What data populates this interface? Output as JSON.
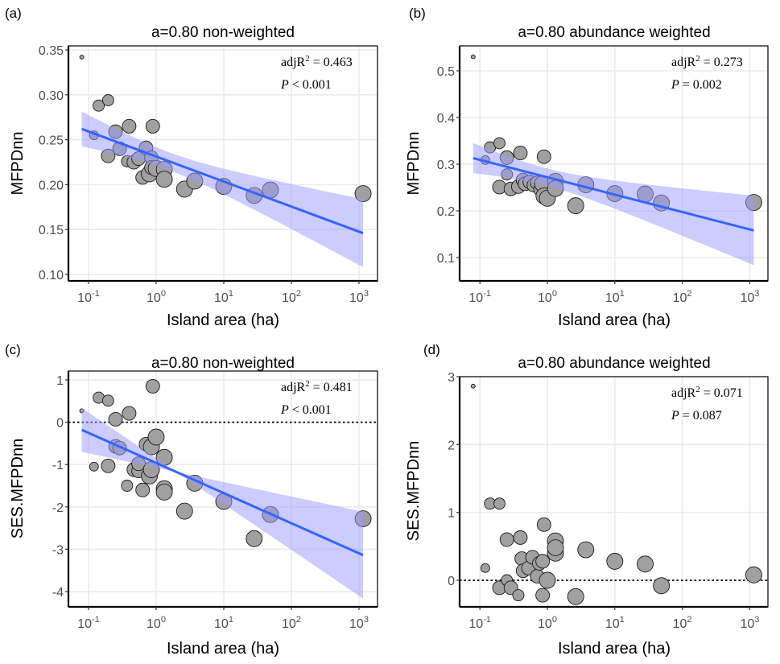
{
  "chart_data": [
    {
      "type": "scatter",
      "panel_label": "(a)",
      "title": "a=0.80 non-weighted",
      "xlabel": "Island area (ha)",
      "ylabel": "MFPDnn",
      "x_scale": "log10",
      "x_ticks": [
        {
          "exp": -1,
          "label": "10",
          "sup": "-1"
        },
        {
          "exp": 0,
          "label": "10",
          "sup": "0"
        },
        {
          "exp": 1,
          "label": "10",
          "sup": "1"
        },
        {
          "exp": 2,
          "label": "10",
          "sup": "2"
        },
        {
          "exp": 3,
          "label": "10",
          "sup": "3"
        }
      ],
      "xlim_log10": [
        -1.3,
        3.25
      ],
      "ylim": [
        0.093,
        0.355
      ],
      "y_ticks": [
        0.1,
        0.15,
        0.2,
        0.25,
        0.3,
        0.35
      ],
      "y_tick_labels": [
        "0.10",
        "0.15",
        "0.20",
        "0.25",
        "0.30",
        "0.35"
      ],
      "zero_line": false,
      "grid": true,
      "stats": {
        "r2_label": "adjR",
        "r2_sup": "2",
        "r2_value": " = 0.463",
        "p_label": "P",
        "p_value": " < 0.001"
      },
      "fit": {
        "x_log10": [
          -1.1,
          3.06
        ],
        "y": [
          0.262,
          0.146
        ],
        "ci_lower": [
          0.247,
          0.11
        ],
        "ci_upper": [
          0.278,
          0.182
        ],
        "ci_mid_log10": 0.2
      },
      "points": [
        {
          "log10_area": -1.1,
          "y": 0.342,
          "size": 1
        },
        {
          "log10_area": -0.85,
          "y": 0.288,
          "size": 3
        },
        {
          "log10_area": -0.71,
          "y": 0.294,
          "size": 3
        },
        {
          "log10_area": -0.92,
          "y": 0.255,
          "size": 2
        },
        {
          "log10_area": -0.6,
          "y": 0.259,
          "size": 4
        },
        {
          "log10_area": -0.4,
          "y": 0.265,
          "size": 4
        },
        {
          "log10_area": -0.05,
          "y": 0.265,
          "size": 4
        },
        {
          "log10_area": -0.71,
          "y": 0.232,
          "size": 4
        },
        {
          "log10_area": -0.54,
          "y": 0.24,
          "size": 4
        },
        {
          "log10_area": -0.43,
          "y": 0.226,
          "size": 3
        },
        {
          "log10_area": -0.33,
          "y": 0.225,
          "size": 4
        },
        {
          "log10_area": -0.26,
          "y": 0.229,
          "size": 4
        },
        {
          "log10_area": -0.15,
          "y": 0.241,
          "size": 4
        },
        {
          "log10_area": -0.07,
          "y": 0.23,
          "size": 4
        },
        {
          "log10_area": -0.2,
          "y": 0.208,
          "size": 4
        },
        {
          "log10_area": -0.1,
          "y": 0.212,
          "size": 5
        },
        {
          "log10_area": -0.07,
          "y": 0.219,
          "size": 4
        },
        {
          "log10_area": 0.0,
          "y": 0.218,
          "size": 5
        },
        {
          "log10_area": 0.12,
          "y": 0.217,
          "size": 5
        },
        {
          "log10_area": 0.12,
          "y": 0.206,
          "size": 5
        },
        {
          "log10_area": 0.42,
          "y": 0.195,
          "size": 5
        },
        {
          "log10_area": 0.57,
          "y": 0.204,
          "size": 5
        },
        {
          "log10_area": 1.0,
          "y": 0.198,
          "size": 5
        },
        {
          "log10_area": 1.45,
          "y": 0.188,
          "size": 5
        },
        {
          "log10_area": 1.69,
          "y": 0.194,
          "size": 5
        },
        {
          "log10_area": 3.06,
          "y": 0.19,
          "size": 5
        }
      ]
    },
    {
      "type": "scatter",
      "panel_label": "(b)",
      "title": "a=0.80 abundance weighted",
      "xlabel": "Island area (ha)",
      "ylabel": "MFPDnn",
      "x_scale": "log10",
      "x_ticks": [
        {
          "exp": -1,
          "label": "10",
          "sup": "-1"
        },
        {
          "exp": 0,
          "label": "10",
          "sup": "0"
        },
        {
          "exp": 1,
          "label": "10",
          "sup": "1"
        },
        {
          "exp": 2,
          "label": "10",
          "sup": "2"
        },
        {
          "exp": 3,
          "label": "10",
          "sup": "3"
        }
      ],
      "xlim_log10": [
        -1.3,
        3.25
      ],
      "ylim": [
        0.06,
        0.55
      ],
      "y_ticks": [
        0.1,
        0.2,
        0.3,
        0.4,
        0.5
      ],
      "y_tick_labels": [
        "0.1",
        "0.2",
        "0.3",
        "0.4",
        "0.5"
      ],
      "zero_line": false,
      "grid": true,
      "stats": {
        "r2_label": "adjR",
        "r2_sup": "2",
        "r2_value": " = 0.273",
        "p_label": "P",
        "p_value": " = 0.002"
      },
      "fit": {
        "x_log10": [
          -1.1,
          3.06
        ],
        "y": [
          0.313,
          0.158
        ],
        "ci_lower": [
          0.281,
          0.083
        ],
        "ci_upper": [
          0.345,
          0.232
        ],
        "ci_mid_log10": 0.0
      },
      "points": [
        {
          "log10_area": -1.1,
          "y": 0.53,
          "size": 1
        },
        {
          "log10_area": -0.92,
          "y": 0.309,
          "size": 2
        },
        {
          "log10_area": -0.85,
          "y": 0.336,
          "size": 3
        },
        {
          "log10_area": -0.71,
          "y": 0.345,
          "size": 3
        },
        {
          "log10_area": -0.6,
          "y": 0.314,
          "size": 4
        },
        {
          "log10_area": -0.6,
          "y": 0.278,
          "size": 3
        },
        {
          "log10_area": -0.4,
          "y": 0.324,
          "size": 4
        },
        {
          "log10_area": -0.05,
          "y": 0.316,
          "size": 4
        },
        {
          "log10_area": -0.71,
          "y": 0.251,
          "size": 4
        },
        {
          "log10_area": -0.54,
          "y": 0.247,
          "size": 4
        },
        {
          "log10_area": -0.43,
          "y": 0.252,
          "size": 4
        },
        {
          "log10_area": -0.36,
          "y": 0.266,
          "size": 4
        },
        {
          "log10_area": -0.33,
          "y": 0.258,
          "size": 4
        },
        {
          "log10_area": -0.26,
          "y": 0.262,
          "size": 4
        },
        {
          "log10_area": -0.2,
          "y": 0.255,
          "size": 4
        },
        {
          "log10_area": -0.15,
          "y": 0.26,
          "size": 4
        },
        {
          "log10_area": -0.1,
          "y": 0.246,
          "size": 4
        },
        {
          "log10_area": -0.07,
          "y": 0.258,
          "size": 5
        },
        {
          "log10_area": -0.05,
          "y": 0.232,
          "size": 5
        },
        {
          "log10_area": 0.0,
          "y": 0.227,
          "size": 5
        },
        {
          "log10_area": 0.12,
          "y": 0.263,
          "size": 5
        },
        {
          "log10_area": 0.12,
          "y": 0.248,
          "size": 5
        },
        {
          "log10_area": 0.42,
          "y": 0.211,
          "size": 5
        },
        {
          "log10_area": 0.57,
          "y": 0.256,
          "size": 5
        },
        {
          "log10_area": 1.0,
          "y": 0.237,
          "size": 5
        },
        {
          "log10_area": 1.45,
          "y": 0.236,
          "size": 5
        },
        {
          "log10_area": 1.69,
          "y": 0.217,
          "size": 5
        },
        {
          "log10_area": 3.06,
          "y": 0.218,
          "size": 5
        }
      ]
    },
    {
      "type": "scatter",
      "panel_label": "(c)",
      "title": "a=0.80 non-weighted",
      "xlabel": "Island area (ha)",
      "ylabel": "SES.MFPDnn",
      "x_scale": "log10",
      "x_ticks": [
        {
          "exp": -1,
          "label": "10",
          "sup": "-1"
        },
        {
          "exp": 0,
          "label": "10",
          "sup": "0"
        },
        {
          "exp": 1,
          "label": "10",
          "sup": "1"
        },
        {
          "exp": 2,
          "label": "10",
          "sup": "2"
        },
        {
          "exp": 3,
          "label": "10",
          "sup": "3"
        }
      ],
      "xlim_log10": [
        -1.3,
        3.25
      ],
      "ylim": [
        -4.2,
        1.1
      ],
      "y_ticks": [
        -4,
        -3,
        -2,
        -1,
        0,
        1
      ],
      "y_tick_labels": [
        "-4",
        "-3",
        "-2",
        "-1",
        "0",
        "1"
      ],
      "zero_line": true,
      "grid": true,
      "stats": {
        "r2_label": "adjR",
        "r2_sup": "2",
        "r2_value": " = 0.481",
        "p_label": "P",
        "p_value": " < 0.001"
      },
      "fit": {
        "x_log10": [
          -1.1,
          3.06
        ],
        "y": [
          -0.18,
          -3.14
        ],
        "ci_lower": [
          -0.6,
          -4.12
        ],
        "ci_upper": [
          0.23,
          -2.17
        ],
        "ci_mid_log10": 0.3
      },
      "points": [
        {
          "log10_area": -1.1,
          "y": 0.27,
          "size": 1
        },
        {
          "log10_area": -0.85,
          "y": 0.58,
          "size": 3
        },
        {
          "log10_area": -0.71,
          "y": 0.51,
          "size": 3
        },
        {
          "log10_area": -0.05,
          "y": 0.85,
          "size": 4
        },
        {
          "log10_area": -0.6,
          "y": 0.07,
          "size": 4
        },
        {
          "log10_area": -0.4,
          "y": 0.21,
          "size": 4
        },
        {
          "log10_area": -0.92,
          "y": -1.05,
          "size": 2
        },
        {
          "log10_area": -0.71,
          "y": -1.03,
          "size": 4
        },
        {
          "log10_area": -0.6,
          "y": -0.57,
          "size": 4
        },
        {
          "log10_area": -0.54,
          "y": -0.61,
          "size": 4
        },
        {
          "log10_area": -0.43,
          "y": -1.5,
          "size": 3
        },
        {
          "log10_area": -0.33,
          "y": -1.12,
          "size": 4
        },
        {
          "log10_area": -0.26,
          "y": -1.15,
          "size": 4
        },
        {
          "log10_area": -0.26,
          "y": -0.98,
          "size": 4
        },
        {
          "log10_area": -0.2,
          "y": -1.6,
          "size": 4
        },
        {
          "log10_area": -0.15,
          "y": -0.52,
          "size": 4
        },
        {
          "log10_area": -0.1,
          "y": -1.27,
          "size": 5
        },
        {
          "log10_area": -0.07,
          "y": -1.12,
          "size": 5
        },
        {
          "log10_area": -0.07,
          "y": -0.58,
          "size": 5
        },
        {
          "log10_area": 0.0,
          "y": -0.35,
          "size": 5
        },
        {
          "log10_area": 0.12,
          "y": -0.83,
          "size": 5
        },
        {
          "log10_area": 0.12,
          "y": -1.57,
          "size": 5
        },
        {
          "log10_area": 0.12,
          "y": -1.65,
          "size": 5
        },
        {
          "log10_area": 0.42,
          "y": -2.1,
          "size": 5
        },
        {
          "log10_area": 0.57,
          "y": -1.44,
          "size": 5
        },
        {
          "log10_area": 1.0,
          "y": -1.87,
          "size": 5
        },
        {
          "log10_area": 1.45,
          "y": -2.75,
          "size": 5
        },
        {
          "log10_area": 1.69,
          "y": -2.18,
          "size": 5
        },
        {
          "log10_area": 3.06,
          "y": -2.28,
          "size": 5
        }
      ]
    },
    {
      "type": "scatter",
      "panel_label": "(d)",
      "title": "a=0.80 abundance weighted",
      "xlabel": "Island area (ha)",
      "ylabel": "SES.MFPDnn",
      "x_scale": "log10",
      "x_ticks": [
        {
          "exp": -1,
          "label": "10",
          "sup": "-1"
        },
        {
          "exp": 0,
          "label": "10",
          "sup": "0"
        },
        {
          "exp": 1,
          "label": "10",
          "sup": "1"
        },
        {
          "exp": 2,
          "label": "10",
          "sup": "2"
        },
        {
          "exp": 3,
          "label": "10",
          "sup": "3"
        }
      ],
      "xlim_log10": [
        -1.3,
        3.25
      ],
      "ylim": [
        -0.38,
        3.0
      ],
      "y_ticks": [
        0,
        1,
        2,
        3
      ],
      "y_tick_labels": [
        "0",
        "1",
        "2",
        "3"
      ],
      "zero_line": true,
      "grid": true,
      "stats": {
        "r2_label": "adjR",
        "r2_sup": "2",
        "r2_value": " = 0.071",
        "p_label": "P",
        "p_value": " = 0.087"
      },
      "fit": null,
      "points": [
        {
          "log10_area": -1.1,
          "y": 2.86,
          "size": 1
        },
        {
          "log10_area": -0.85,
          "y": 1.13,
          "size": 3
        },
        {
          "log10_area": -0.71,
          "y": 1.13,
          "size": 3
        },
        {
          "log10_area": -0.92,
          "y": 0.18,
          "size": 2
        },
        {
          "log10_area": -0.6,
          "y": 0.6,
          "size": 4
        },
        {
          "log10_area": -0.4,
          "y": 0.63,
          "size": 4
        },
        {
          "log10_area": -0.05,
          "y": 0.82,
          "size": 4
        },
        {
          "log10_area": -0.71,
          "y": -0.11,
          "size": 4
        },
        {
          "log10_area": -0.6,
          "y": 0.0,
          "size": 3
        },
        {
          "log10_area": -0.54,
          "y": -0.11,
          "size": 4
        },
        {
          "log10_area": -0.43,
          "y": -0.22,
          "size": 3
        },
        {
          "log10_area": -0.38,
          "y": 0.32,
          "size": 4
        },
        {
          "log10_area": -0.36,
          "y": 0.14,
          "size": 4
        },
        {
          "log10_area": -0.28,
          "y": 0.18,
          "size": 4
        },
        {
          "log10_area": -0.22,
          "y": 0.34,
          "size": 4
        },
        {
          "log10_area": -0.15,
          "y": 0.06,
          "size": 4
        },
        {
          "log10_area": -0.12,
          "y": 0.25,
          "size": 4
        },
        {
          "log10_area": -0.07,
          "y": 0.28,
          "size": 4
        },
        {
          "log10_area": -0.07,
          "y": -0.22,
          "size": 4
        },
        {
          "log10_area": 0.0,
          "y": 0.0,
          "size": 5
        },
        {
          "log10_area": 0.12,
          "y": 0.58,
          "size": 5
        },
        {
          "log10_area": 0.12,
          "y": 0.4,
          "size": 5
        },
        {
          "log10_area": 0.12,
          "y": 0.48,
          "size": 5
        },
        {
          "log10_area": 0.42,
          "y": -0.24,
          "size": 5
        },
        {
          "log10_area": 0.57,
          "y": 0.45,
          "size": 5
        },
        {
          "log10_area": 1.0,
          "y": 0.28,
          "size": 5
        },
        {
          "log10_area": 1.45,
          "y": 0.24,
          "size": 5
        },
        {
          "log10_area": 1.69,
          "y": -0.08,
          "size": 5
        },
        {
          "log10_area": 3.06,
          "y": 0.08,
          "size": 5
        }
      ]
    }
  ],
  "colors": {
    "point_fill": "#a0a0a0",
    "point_stroke": "#1a1a1a",
    "fit_line": "#3366ff",
    "ci_ribbon": "#9999ff",
    "grid": "#ebebeb",
    "tick_text": "#4d4d4d"
  }
}
